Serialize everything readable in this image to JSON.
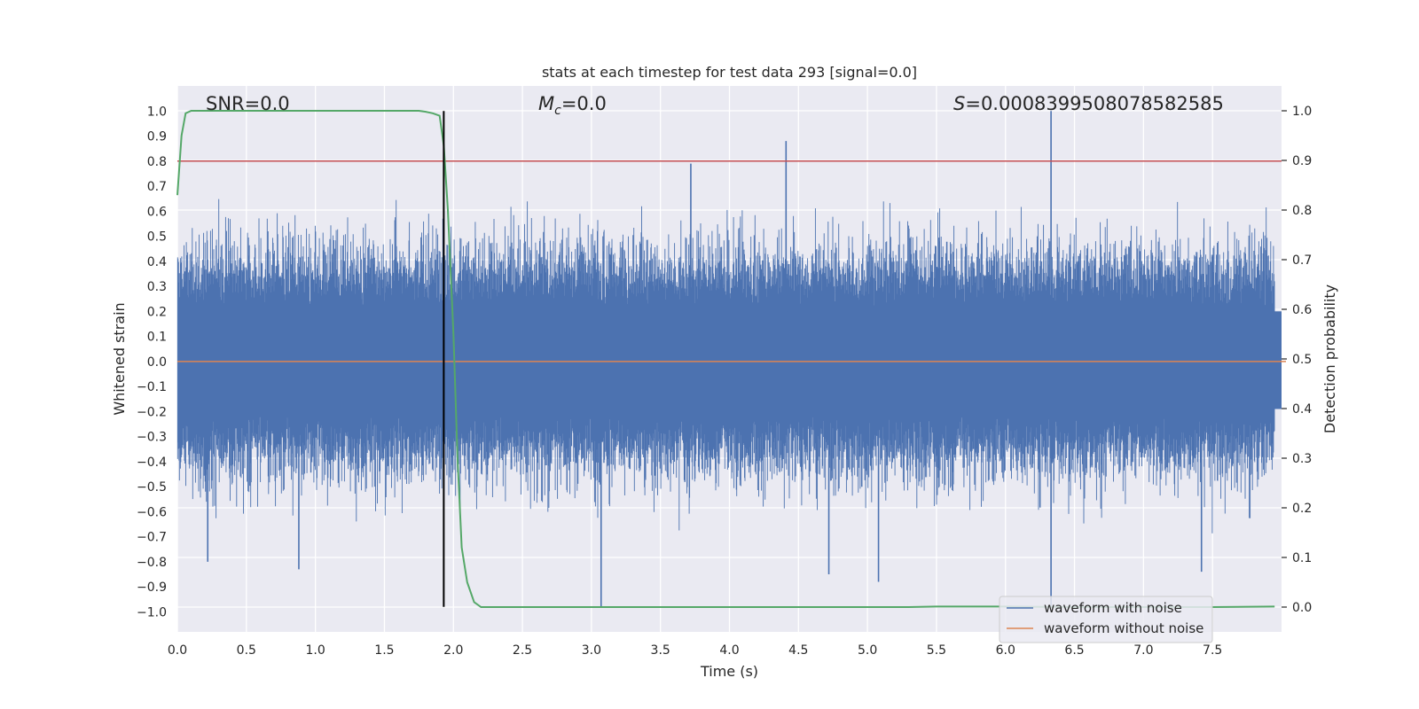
{
  "chart_data": {
    "type": "line",
    "title": "stats at each timestep for test data 293 [signal=0.0]",
    "xlabel": "Time (s)",
    "ylabel": "Whitened strain",
    "y2label": "Detection probability",
    "xlim": [
      0.0,
      8.0
    ],
    "ylim": [
      -1.08,
      1.1
    ],
    "y2lim": [
      -0.05,
      1.05
    ],
    "xticks": [
      0.0,
      0.5,
      1.0,
      1.5,
      2.0,
      2.5,
      3.0,
      3.5,
      4.0,
      4.5,
      5.0,
      5.5,
      6.0,
      6.5,
      7.0,
      7.5
    ],
    "xtick_labels": [
      "0.0",
      "0.5",
      "1.0",
      "1.5",
      "2.0",
      "2.5",
      "3.0",
      "3.5",
      "4.0",
      "4.5",
      "5.0",
      "5.5",
      "6.0",
      "6.5",
      "7.0",
      "7.5"
    ],
    "yticks": [
      1.0,
      0.9,
      0.8,
      0.7,
      0.6,
      0.5,
      0.4,
      0.3,
      0.2,
      0.1,
      0.0,
      -0.1,
      -0.2,
      -0.3,
      -0.4,
      -0.5,
      -0.6,
      -0.7,
      -0.8,
      -0.9,
      -1.0
    ],
    "ytick_labels": [
      "1.0",
      "0.9",
      "0.8",
      "0.7",
      "0.6",
      "0.5",
      "0.4",
      "0.3",
      "0.2",
      "0.1",
      "0.0",
      "−0.1",
      "−0.2",
      "−0.3",
      "−0.4",
      "−0.5",
      "−0.6",
      "−0.7",
      "−0.8",
      "−0.9",
      "−1.0"
    ],
    "y2ticks": [
      1.0,
      0.9,
      0.8,
      0.7,
      0.6,
      0.5,
      0.4,
      0.3,
      0.2,
      0.1,
      0.0
    ],
    "y2tick_labels": [
      "1.0",
      "0.9",
      "0.8",
      "0.7",
      "0.6",
      "0.5",
      "0.4",
      "0.3",
      "0.2",
      "0.1",
      "0.0"
    ],
    "annotations": {
      "snr": "SNR=0.0",
      "mc_symbol": "M",
      "mc_sub": "c",
      "mc_value": "=0.0",
      "s_symbol": "S",
      "s_value": "=0.0008399508078582585"
    },
    "threshold_line": {
      "y": 0.8,
      "color": "#c44e52"
    },
    "vertical_marker": {
      "x": 1.93,
      "ymin": -0.98,
      "ymax": 1.0,
      "color": "#000000"
    },
    "noise_envelope": {
      "description_values_in_data_units": true,
      "peak_spikes": [
        {
          "x": 4.41,
          "y": 0.88
        },
        {
          "x": 6.33,
          "y": 1.0
        },
        {
          "x": 6.33,
          "y": -0.98
        },
        {
          "x": 3.07,
          "y": -0.98
        },
        {
          "x": 3.72,
          "y": 0.79
        },
        {
          "x": 0.22,
          "y": -0.8
        },
        {
          "x": 0.88,
          "y": -0.83
        },
        {
          "x": 5.08,
          "y": -0.88
        },
        {
          "x": 7.42,
          "y": -0.84
        },
        {
          "x": 4.72,
          "y": -0.85
        }
      ]
    },
    "series": [
      {
        "name": "waveform with noise",
        "color": "#4c72b0",
        "axis": "left",
        "kind": "noise",
        "amplitude_typical": 0.45,
        "amplitude_max": 1.0
      },
      {
        "name": "waveform without noise",
        "color": "#dd8452",
        "axis": "left",
        "x": [
          0.0,
          8.0
        ],
        "y": [
          0.0,
          0.0
        ]
      },
      {
        "name": "detection probability",
        "color": "#55a868",
        "axis": "right",
        "x": [
          0.0,
          0.03,
          0.06,
          0.1,
          0.15,
          0.2,
          0.5,
          1.0,
          1.5,
          1.75,
          1.8,
          1.85,
          1.9,
          1.93,
          1.96,
          2.0,
          2.03,
          2.06,
          2.1,
          2.15,
          2.2,
          2.5,
          3.0,
          4.0,
          5.0,
          5.3,
          5.5,
          6.0,
          6.5,
          7.0,
          7.5,
          7.95
        ],
        "y": [
          0.83,
          0.95,
          0.995,
          1.0,
          1.0,
          1.0,
          1.0,
          1.0,
          1.0,
          1.0,
          0.998,
          0.995,
          0.99,
          0.93,
          0.8,
          0.55,
          0.3,
          0.12,
          0.05,
          0.01,
          0.0,
          0.0,
          0.0,
          0.0,
          0.0,
          0.0,
          0.001,
          0.001,
          0.0,
          0.0,
          0.0,
          0.001
        ]
      }
    ],
    "legend": {
      "location": "lower-right",
      "entries": [
        "waveform with noise",
        "waveform without noise"
      ]
    },
    "colors": {
      "background": "#eaeaf2",
      "grid": "#ffffff",
      "noise": "#4c72b0",
      "clean": "#dd8452",
      "probability": "#55a868",
      "threshold": "#c44e52"
    }
  }
}
